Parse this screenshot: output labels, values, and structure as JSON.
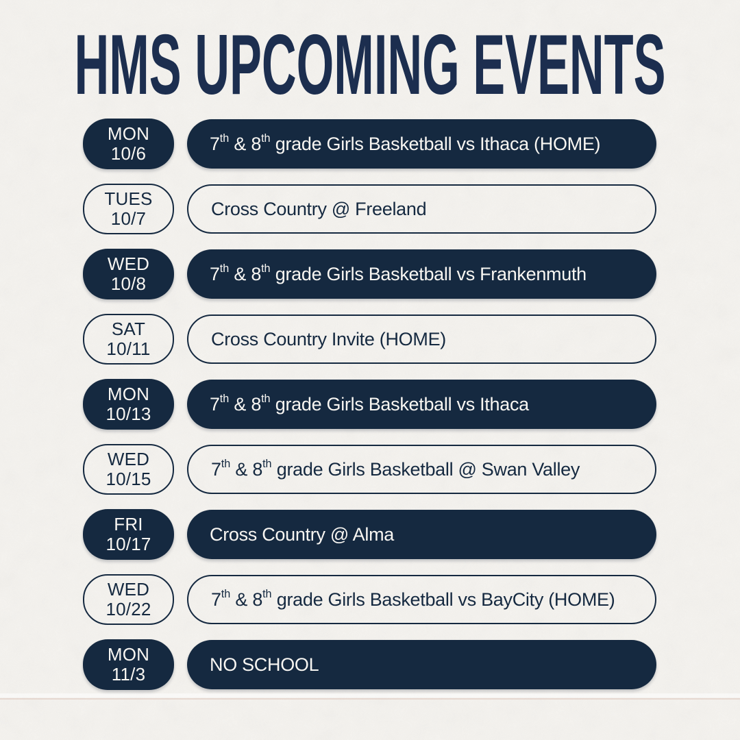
{
  "title": "HMS UPCOMING EVENTS",
  "colors": {
    "background": "#f5f3ef",
    "navy": "#152940",
    "title_navy": "#1c2e4f",
    "text_light": "#f8f6f2",
    "crease_tan": "#d9bfb4"
  },
  "events": [
    {
      "day": "MON",
      "date": "10/6",
      "style": "filled",
      "desc": [
        {
          "t": "7"
        },
        {
          "sup": "th"
        },
        {
          "t": " & 8"
        },
        {
          "sup": "th"
        },
        {
          "t": " grade Girls Basketball vs Ithaca (HOME)"
        }
      ]
    },
    {
      "day": "TUES",
      "date": "10/7",
      "style": "outlined",
      "desc": [
        {
          "t": "Cross Country @ Freeland"
        }
      ]
    },
    {
      "day": "WED",
      "date": "10/8",
      "style": "filled",
      "desc": [
        {
          "t": "7"
        },
        {
          "sup": "th"
        },
        {
          "t": " & 8"
        },
        {
          "sup": "th"
        },
        {
          "t": " grade Girls Basketball vs Frankenmuth"
        }
      ]
    },
    {
      "day": "SAT",
      "date": "10/11",
      "style": "outlined",
      "desc": [
        {
          "t": "Cross Country Invite (HOME)"
        }
      ]
    },
    {
      "day": "MON",
      "date": "10/13",
      "style": "filled",
      "desc": [
        {
          "t": "7"
        },
        {
          "sup": "th"
        },
        {
          "t": " & 8"
        },
        {
          "sup": "th"
        },
        {
          "t": " grade Girls Basketball vs Ithaca"
        }
      ]
    },
    {
      "day": "WED",
      "date": "10/15",
      "style": "outlined",
      "desc": [
        {
          "t": "7"
        },
        {
          "sup": "th"
        },
        {
          "t": " & 8"
        },
        {
          "sup": "th"
        },
        {
          "t": " grade Girls Basketball @ Swan Valley"
        }
      ]
    },
    {
      "day": "FRI",
      "date": "10/17",
      "style": "filled",
      "desc": [
        {
          "t": "Cross Country @ Alma"
        }
      ]
    },
    {
      "day": "WED",
      "date": "10/22",
      "style": "outlined",
      "desc": [
        {
          "t": "7"
        },
        {
          "sup": "th"
        },
        {
          "t": " & 8"
        },
        {
          "sup": "th"
        },
        {
          "t": " grade Girls Basketball vs BayCity (HOME)"
        }
      ]
    },
    {
      "day": "MON",
      "date": "11/3",
      "style": "filled",
      "desc": [
        {
          "t": "NO SCHOOL"
        }
      ]
    }
  ]
}
